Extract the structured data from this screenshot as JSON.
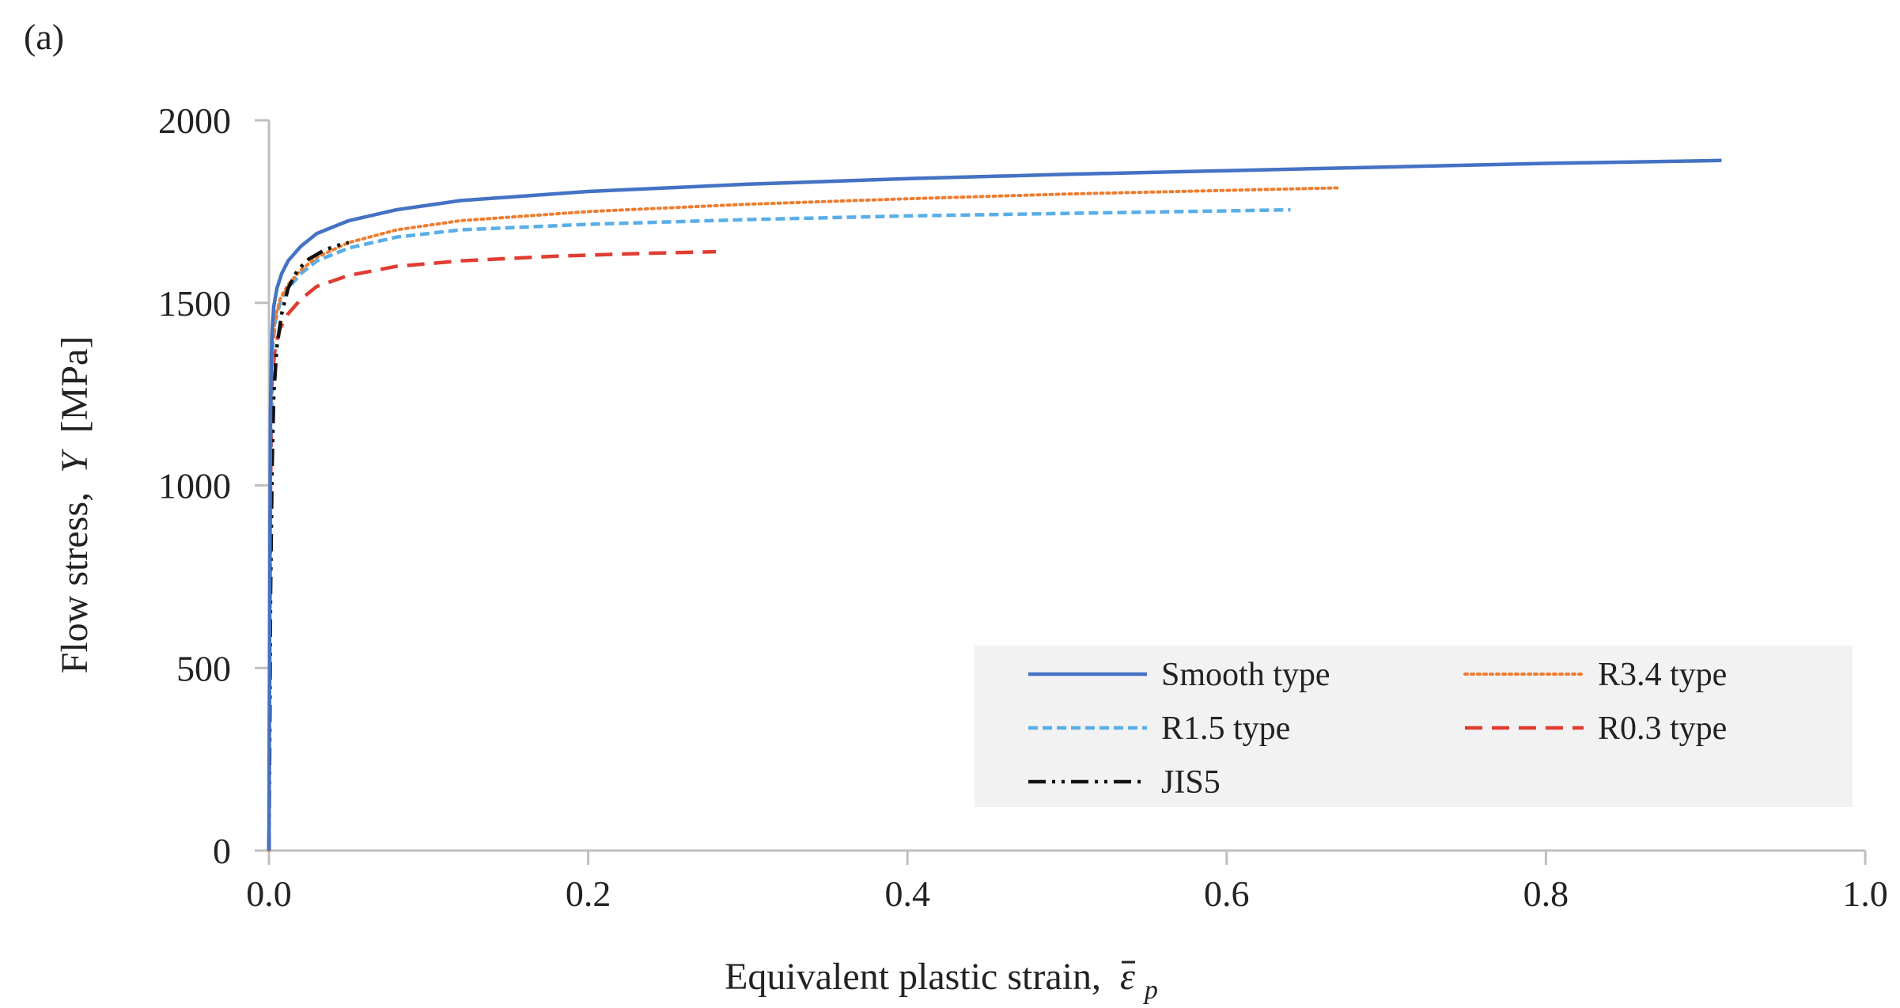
{
  "panel_label": "(a)",
  "chart_data": {
    "type": "line",
    "title": "",
    "xlabel": "Equivalent plastic strain,",
    "xlabel_symbol": "ε",
    "xlabel_subscript": "p",
    "ylabel": "Flow stress,",
    "ylabel_symbol": "Y",
    "ylabel_unit": "[MPa]",
    "xlim": [
      0.0,
      1.0
    ],
    "ylim": [
      0,
      2000
    ],
    "xticks": [
      0.0,
      0.2,
      0.4,
      0.6,
      0.8,
      1.0
    ],
    "xtick_labels": [
      "0.0",
      "0.2",
      "0.4",
      "0.6",
      "0.8",
      "1.0"
    ],
    "yticks": [
      0,
      500,
      1000,
      1500,
      2000
    ],
    "ytick_labels": [
      "0",
      "500",
      "1000",
      "1500",
      "2000"
    ],
    "grid": false,
    "legend_position": "bottom-right",
    "legend_background": "#f2f2f2",
    "series": [
      {
        "name": "Smooth type",
        "color": "#4472c4",
        "dash": "solid",
        "x": [
          0.0,
          0.0005,
          0.001,
          0.0015,
          0.002,
          0.003,
          0.005,
          0.008,
          0.012,
          0.02,
          0.03,
          0.05,
          0.08,
          0.12,
          0.2,
          0.3,
          0.4,
          0.5,
          0.6,
          0.7,
          0.8,
          0.91
        ],
        "y": [
          0,
          700,
          1200,
          1350,
          1420,
          1490,
          1540,
          1580,
          1615,
          1655,
          1690,
          1725,
          1755,
          1780,
          1805,
          1825,
          1840,
          1852,
          1862,
          1872,
          1882,
          1890
        ]
      },
      {
        "name": "R3.4 type",
        "color": "#ed7d31",
        "dash": "dotted",
        "x": [
          0.0,
          0.0005,
          0.001,
          0.002,
          0.004,
          0.007,
          0.012,
          0.02,
          0.03,
          0.05,
          0.08,
          0.12,
          0.2,
          0.3,
          0.4,
          0.5,
          0.6,
          0.67
        ],
        "y": [
          0,
          650,
          1150,
          1380,
          1460,
          1510,
          1550,
          1590,
          1625,
          1665,
          1700,
          1725,
          1750,
          1770,
          1785,
          1798,
          1808,
          1815
        ]
      },
      {
        "name": "R1.5 type",
        "color": "#5aaee8",
        "dash": "dashed",
        "x": [
          0.0,
          0.0005,
          0.001,
          0.002,
          0.004,
          0.007,
          0.012,
          0.02,
          0.03,
          0.05,
          0.08,
          0.12,
          0.2,
          0.3,
          0.4,
          0.5,
          0.6,
          0.64
        ],
        "y": [
          0,
          600,
          1100,
          1360,
          1450,
          1500,
          1540,
          1580,
          1615,
          1650,
          1680,
          1700,
          1715,
          1728,
          1738,
          1745,
          1752,
          1755
        ]
      },
      {
        "name": "R0.3 type",
        "color": "#e03c31",
        "dash": "longdash",
        "x": [
          0.0,
          0.0005,
          0.001,
          0.002,
          0.004,
          0.007,
          0.012,
          0.02,
          0.03,
          0.05,
          0.08,
          0.12,
          0.18,
          0.24,
          0.28
        ],
        "y": [
          0,
          500,
          1000,
          1300,
          1380,
          1430,
          1470,
          1510,
          1545,
          1575,
          1600,
          1615,
          1628,
          1636,
          1640
        ]
      },
      {
        "name": "JIS5",
        "color": "#111111",
        "dash": "dashdotdot",
        "x": [
          0.0,
          0.0005,
          0.001,
          0.002,
          0.003,
          0.005,
          0.008,
          0.012,
          0.018,
          0.025,
          0.035,
          0.045,
          0.05
        ],
        "y": [
          0,
          300,
          700,
          1050,
          1250,
          1380,
          1470,
          1540,
          1590,
          1620,
          1645,
          1660,
          1665
        ]
      }
    ]
  }
}
